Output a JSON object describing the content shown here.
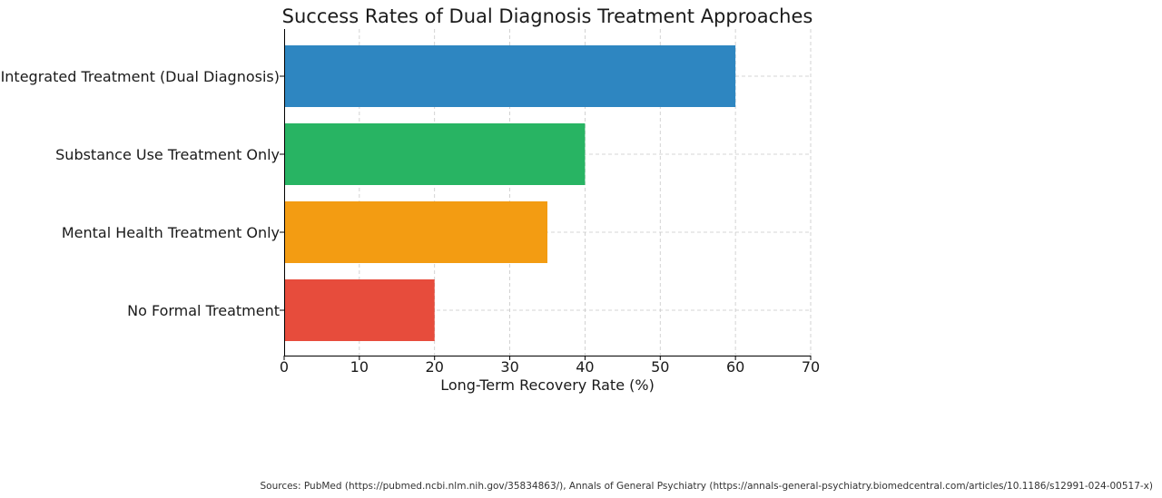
{
  "chart_data": {
    "type": "bar",
    "orientation": "horizontal",
    "title": "Success Rates of Dual Diagnosis Treatment Approaches",
    "xlabel": "Long-Term Recovery Rate (%)",
    "ylabel": "",
    "categories": [
      "Integrated Treatment (Dual Diagnosis)",
      "Substance Use Treatment Only",
      "Mental Health Treatment Only",
      "No Formal Treatment"
    ],
    "values": [
      60,
      40,
      35,
      20
    ],
    "colors": [
      "#2e86c1",
      "#28b463",
      "#f39c12",
      "#e74c3c"
    ],
    "xlim": [
      0,
      70
    ],
    "xticks": [
      "0",
      "10",
      "20",
      "30",
      "40",
      "50",
      "60",
      "70"
    ],
    "grid": true
  },
  "source_note": "Sources: PubMed (https://pubmed.ncbi.nlm.nih.gov/35834863/), Annals of General Psychiatry (https://annals-general-psychiatry.biomedcentral.com/articles/10.1186/s12991-024-00517-x)"
}
